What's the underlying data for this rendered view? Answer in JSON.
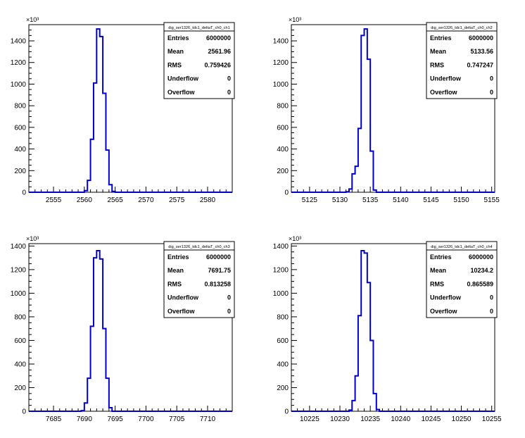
{
  "chart_data": [
    {
      "type": "histogram",
      "title": "",
      "xlabel": "",
      "ylabel": "",
      "y_exponent": "×10³",
      "xlim": [
        2551,
        2584
      ],
      "ylim": [
        0,
        1550
      ],
      "x_ticks": [
        2555,
        2560,
        2565,
        2570,
        2575,
        2580
      ],
      "y_ticks": [
        0,
        200,
        400,
        600,
        800,
        1000,
        1200,
        1400
      ],
      "bin_width": 0.5,
      "x": [
        2559.5,
        2560.0,
        2560.5,
        2561.0,
        2561.5,
        2562.0,
        2562.5,
        2563.0,
        2563.5,
        2564.0,
        2564.5
      ],
      "values": [
        0,
        15,
        110,
        490,
        1010,
        1510,
        1440,
        915,
        390,
        70,
        8
      ],
      "stats": {
        "name": "dig_ser1326_tdc1_deltaT_ch0_ch1",
        "rows": [
          {
            "label": "Entries",
            "value": "6000000"
          },
          {
            "label": "Mean",
            "value": "2561.96"
          },
          {
            "label": "RMS",
            "value": "0.759426"
          },
          {
            "label": "Underflow",
            "value": "0"
          },
          {
            "label": "Overflow",
            "value": "0"
          }
        ]
      }
    },
    {
      "type": "histogram",
      "title": "",
      "xlabel": "",
      "ylabel": "",
      "y_exponent": "×10³",
      "xlim": [
        5122,
        5155.5
      ],
      "ylim": [
        0,
        1550
      ],
      "x_ticks": [
        5125,
        5130,
        5135,
        5140,
        5145,
        5150,
        5155
      ],
      "y_ticks": [
        0,
        200,
        400,
        600,
        800,
        1000,
        1200,
        1400
      ],
      "bin_width": 0.5,
      "x": [
        5131.0,
        5131.5,
        5132.0,
        5132.5,
        5133.0,
        5133.5,
        5134.0,
        5134.5,
        5135.0,
        5135.5
      ],
      "values": [
        5,
        30,
        170,
        240,
        590,
        1450,
        1510,
        1230,
        380,
        20
      ],
      "stats": {
        "name": "dig_ser1326_tdc1_deltaT_ch0_ch2",
        "rows": [
          {
            "label": "Entries",
            "value": "6000000"
          },
          {
            "label": "Mean",
            "value": "5133.56"
          },
          {
            "label": "RMS",
            "value": "0.747247"
          },
          {
            "label": "Underflow",
            "value": "0"
          },
          {
            "label": "Overflow",
            "value": "0"
          }
        ]
      }
    },
    {
      "type": "histogram",
      "title": "",
      "xlabel": "",
      "ylabel": "",
      "y_exponent": "×10³",
      "xlim": [
        7681,
        7714
      ],
      "ylim": [
        0,
        1420
      ],
      "x_ticks": [
        7685,
        7690,
        7695,
        7700,
        7705,
        7710
      ],
      "y_ticks": [
        0,
        200,
        400,
        600,
        800,
        1000,
        1200,
        1400
      ],
      "bin_width": 0.5,
      "x": [
        7689.5,
        7690.0,
        7690.5,
        7691.0,
        7691.5,
        7692.0,
        7692.5,
        7693.0,
        7693.5,
        7694.0
      ],
      "values": [
        5,
        70,
        280,
        720,
        1300,
        1360,
        1290,
        700,
        280,
        30
      ],
      "stats": {
        "name": "dig_ser1326_tdc1_deltaT_ch0_ch3",
        "rows": [
          {
            "label": "Entries",
            "value": "6000000"
          },
          {
            "label": "Mean",
            "value": "7691.75"
          },
          {
            "label": "RMS",
            "value": "0.813258"
          },
          {
            "label": "Underflow",
            "value": "0"
          },
          {
            "label": "Overflow",
            "value": "0"
          }
        ]
      }
    },
    {
      "type": "histogram",
      "title": "",
      "xlabel": "",
      "ylabel": "",
      "y_exponent": "×10³",
      "xlim": [
        10222,
        10255.5
      ],
      "ylim": [
        0,
        1420
      ],
      "x_ticks": [
        10225,
        10230,
        10235,
        10240,
        10245,
        10250,
        10255
      ],
      "y_ticks": [
        0,
        200,
        400,
        600,
        800,
        1000,
        1200,
        1400
      ],
      "bin_width": 0.5,
      "x": [
        10231.5,
        10232.0,
        10232.5,
        10233.0,
        10233.5,
        10234.0,
        10234.5,
        10235.0,
        10235.5,
        10236.0
      ],
      "values": [
        10,
        90,
        300,
        810,
        1360,
        1340,
        1090,
        600,
        150,
        15
      ],
      "stats": {
        "name": "dig_ser1326_tdc1_deltaT_ch0_ch4",
        "rows": [
          {
            "label": "Entries",
            "value": "6000000"
          },
          {
            "label": "Mean",
            "value": "10234.2"
          },
          {
            "label": "RMS",
            "value": "0.865589"
          },
          {
            "label": "Underflow",
            "value": "0"
          },
          {
            "label": "Overflow",
            "value": "0"
          }
        ]
      }
    }
  ],
  "colors": {
    "histogram_line": "#0000cc",
    "axis": "#000000",
    "stats_border": "#000000",
    "background": "#ffffff"
  }
}
